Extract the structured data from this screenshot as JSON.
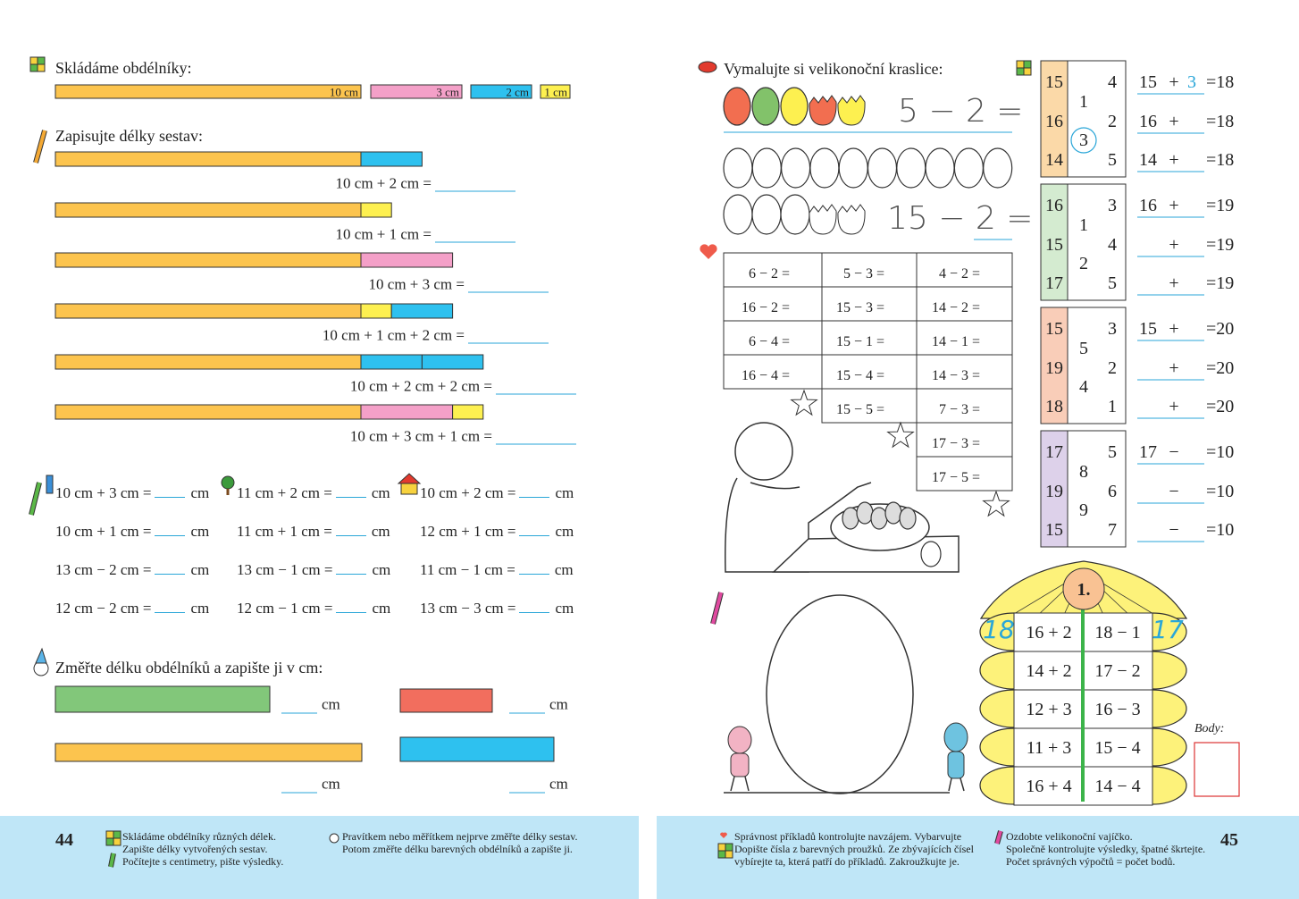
{
  "left": {
    "build": {
      "title": "Skládáme obdélníky:",
      "bars": [
        "10 cm",
        "3 cm",
        "2 cm",
        "1 cm"
      ]
    },
    "write": {
      "title": "Zapisujte délky sestav:",
      "rows": [
        "10 cm + 2 cm =",
        "10 cm + 1 cm =",
        "10 cm + 3 cm =",
        "10 cm + 1 cm + 2 cm =",
        "10 cm + 2 cm + 2 cm =",
        "10 cm + 3 cm + 1 cm ="
      ]
    },
    "compute": {
      "rows": [
        [
          "10 cm + 3 cm =",
          "11 cm + 2 cm =",
          "10 cm + 2 cm ="
        ],
        [
          "10 cm + 1 cm =",
          "11 cm + 1 cm =",
          "12 cm + 1 cm ="
        ],
        [
          "13 cm − 2 cm =",
          "13 cm − 1 cm =",
          "11 cm − 1 cm ="
        ],
        [
          "12 cm − 2 cm =",
          "12 cm − 1 cm =",
          "13 cm − 3 cm ="
        ]
      ],
      "unit": "cm"
    },
    "measure": {
      "title": "Změřte délku obdélníků a zapište ji v cm:",
      "unit": "cm"
    },
    "page_number": 44,
    "instructions": {
      "col1": [
        "Skládáme obdélníky různých délek.",
        "Zapište délky vytvořených sestav.",
        "Počítejte s centimetry, pište výsledky."
      ],
      "col2": [
        "Pravítkem nebo měřítkem nejprve změřte délky sestav.",
        "Potom změřte délku barevných obdélníků a zapište ji."
      ]
    }
  },
  "right": {
    "eggs": {
      "title": "Vymalujte si velikonoční kraslice:",
      "example": "5 − 2 =",
      "task": "15 − 2 ="
    },
    "table": {
      "columns": [
        [
          "6 − 2 =",
          "16 − 2 =",
          "6 − 4 =",
          "16 − 4 ="
        ],
        [
          "5 − 3 =",
          "15 − 3 =",
          "15 − 1 =",
          "15 − 4 =",
          "15 − 5 ="
        ],
        [
          "4 − 2 =",
          "14 − 2 =",
          "14 − 1 =",
          "14 − 3 =",
          "7 − 3 =",
          "17 − 3 =",
          "17 − 5 ="
        ]
      ]
    },
    "strips": [
      {
        "left": [
          15,
          16,
          14
        ],
        "middle": [
          1,
          3
        ],
        "right": [
          4,
          2,
          5
        ],
        "equations": [
          {
            "a": 15,
            "op": "+",
            "answer": 3,
            "result": "=18"
          },
          {
            "a": 16,
            "op": "+",
            "result": "=18"
          },
          {
            "a": 14,
            "op": "+",
            "result": "=18"
          }
        ]
      },
      {
        "left": [
          16,
          15,
          17
        ],
        "middle": [
          1,
          2
        ],
        "right": [
          3,
          4,
          5
        ],
        "equations": [
          {
            "a": 16,
            "op": "+",
            "result": "=19"
          },
          {
            "op": "+",
            "result": "=19"
          },
          {
            "op": "+",
            "result": "=19"
          }
        ]
      },
      {
        "left": [
          15,
          19,
          18
        ],
        "middle": [
          5,
          4
        ],
        "right": [
          3,
          2,
          1
        ],
        "equations": [
          {
            "a": 15,
            "op": "+",
            "result": "=20"
          },
          {
            "op": "+",
            "result": "=20"
          },
          {
            "op": "+",
            "result": "=20"
          }
        ]
      },
      {
        "left": [
          17,
          19,
          15
        ],
        "middle": [
          8,
          9
        ],
        "right": [
          5,
          6,
          7
        ],
        "equations": [
          {
            "a": 17,
            "op": "−",
            "result": "=10"
          },
          {
            "op": "−",
            "result": "=10"
          },
          {
            "op": "−",
            "result": "=10"
          }
        ]
      }
    ],
    "house": {
      "number": "1.",
      "left_score": 18,
      "right_score": 17,
      "rows": [
        [
          "16 + 2",
          "18 − 1"
        ],
        [
          "14 + 2",
          "17 − 2"
        ],
        [
          "12 + 3",
          "16 − 3"
        ],
        [
          "11 + 3",
          "15 − 4"
        ],
        [
          "16 + 4",
          "14 − 4"
        ]
      ],
      "points_label": "Body:"
    },
    "page_number": 45,
    "instructions": {
      "col1": [
        "Správnost příkladů kontrolujte navzájem. Vybarvujte",
        "Dopište čísla z barevných proužků. Ze zbývajících čísel",
        "vybírejte ta, která patří do příkladů. Zakroužkujte je."
      ],
      "col2": [
        "Ozdobte velikonoční vajíčko.",
        "Společně kontrolujte výsledky, špatné škrtejte.",
        "Počet správných výpočtů = počet bodů."
      ]
    }
  }
}
